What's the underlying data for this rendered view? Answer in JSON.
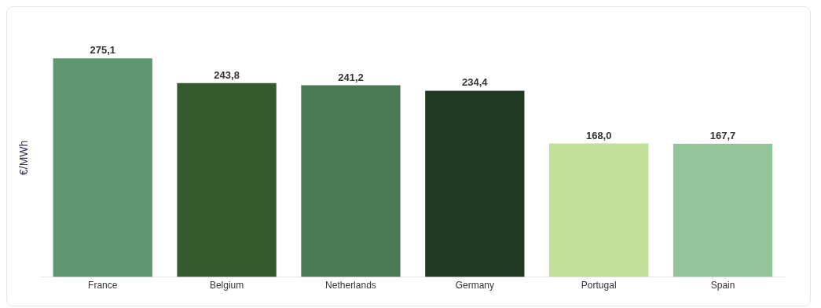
{
  "chart_data": {
    "type": "bar",
    "ylabel": "€/MWh",
    "categories": [
      "France",
      "Belgium",
      "Netherlands",
      "Germany",
      "Portugal",
      "Spain"
    ],
    "values": [
      275.1,
      243.8,
      241.2,
      234.4,
      168.0,
      167.7
    ],
    "colors": [
      "#5e9770",
      "#345a2e",
      "#4a7a53",
      "#1f3a20",
      "#c3e09a",
      "#93c598"
    ],
    "value_labels": [
      "275,1",
      "243,8",
      "241,2",
      "234,4",
      "168,0",
      "167,7"
    ],
    "grid": false,
    "legend": false
  }
}
